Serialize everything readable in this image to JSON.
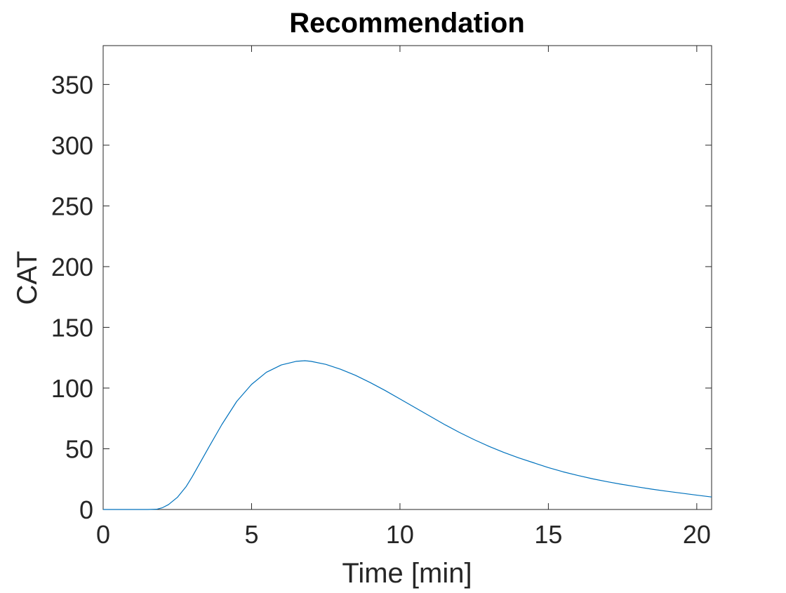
{
  "chart_data": {
    "type": "line",
    "title": "Recommendation",
    "xlabel": "Time [min]",
    "ylabel": "CAT",
    "xlim": [
      0,
      20.5
    ],
    "ylim": [
      0,
      382
    ],
    "grid": false,
    "box": true,
    "xticks": [
      0,
      5,
      10,
      15,
      20
    ],
    "xtick_labels": [
      "0",
      "5",
      "10",
      "15",
      "20"
    ],
    "yticks": [
      0,
      50,
      100,
      150,
      200,
      250,
      300,
      350
    ],
    "ytick_labels": [
      "0",
      "50",
      "100",
      "150",
      "200",
      "250",
      "300",
      "350"
    ],
    "series": [
      {
        "color": "#0072BD",
        "x": [
          0,
          0.5,
          1,
          1.5,
          1.8,
          2,
          2.2,
          2.5,
          2.8,
          3,
          3.3,
          3.6,
          4,
          4.5,
          5,
          5.5,
          6,
          6.5,
          6.8,
          7,
          7.5,
          8,
          8.5,
          9,
          9.5,
          10,
          10.5,
          11,
          11.5,
          12,
          12.5,
          13,
          13.5,
          14,
          14.5,
          15,
          15.5,
          16,
          16.5,
          17,
          17.5,
          18,
          18.5,
          19,
          19.5,
          20,
          20.5
        ],
        "y": [
          0,
          0,
          0,
          0,
          0.2,
          1.5,
          4,
          10,
          19,
          27,
          40,
          53,
          70,
          89,
          103,
          113,
          119,
          122,
          122.5,
          122,
          119.5,
          115.5,
          110.5,
          104.5,
          98,
          91,
          84,
          77,
          70,
          63.5,
          57.5,
          52,
          47,
          42.5,
          38.5,
          34.5,
          31,
          28,
          25.2,
          22.8,
          20.6,
          18.6,
          16.7,
          15,
          13.4,
          11.8,
          10.3
        ]
      }
    ]
  }
}
